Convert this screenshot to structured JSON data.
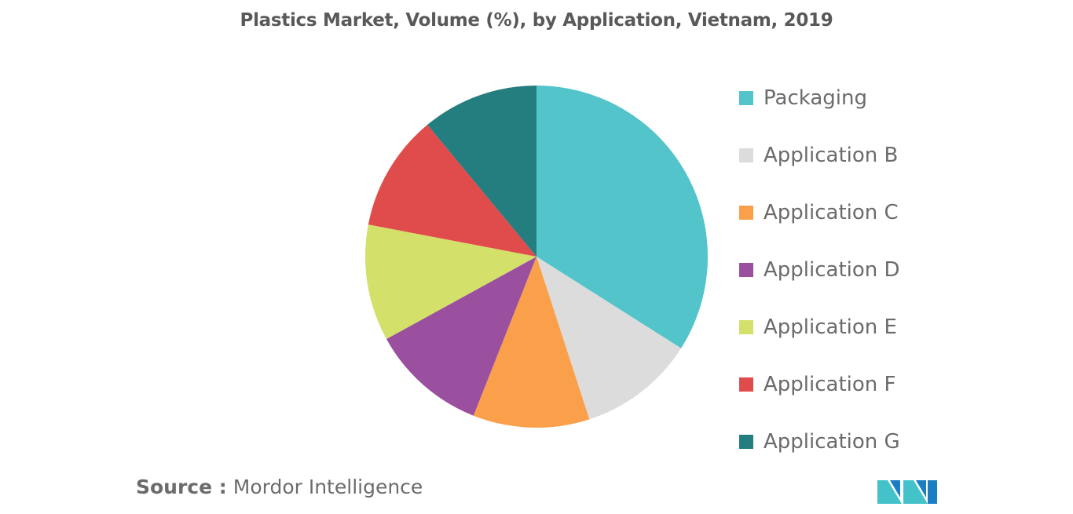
{
  "title": "Plastics Market, Volume (%), by Application, Vietnam, 2019",
  "source": {
    "key": "Source :",
    "value": "Mordor Intelligence"
  },
  "chart_data": {
    "type": "pie",
    "title": "Plastics Market, Volume (%), by Application, Vietnam, 2019",
    "legend_position": "right",
    "start_angle": "12 o'clock, clockwise",
    "slices": [
      {
        "label": "Packaging",
        "value": 34,
        "color": "#52C4CA"
      },
      {
        "label": "Application B",
        "value": 11,
        "color": "#DCDCDC"
      },
      {
        "label": "Application C",
        "value": 11,
        "color": "#FBA04A"
      },
      {
        "label": "Application D",
        "value": 11,
        "color": "#9A4F9F"
      },
      {
        "label": "Application E",
        "value": 11,
        "color": "#D3E06A"
      },
      {
        "label": "Application F",
        "value": 11,
        "color": "#E04B4B"
      },
      {
        "label": "Application G",
        "value": 11,
        "color": "#247E80"
      }
    ]
  },
  "logo": {
    "icon": "mordor-intelligence-logo",
    "colors": [
      "#1C7EC2",
      "#43C2C9"
    ]
  }
}
